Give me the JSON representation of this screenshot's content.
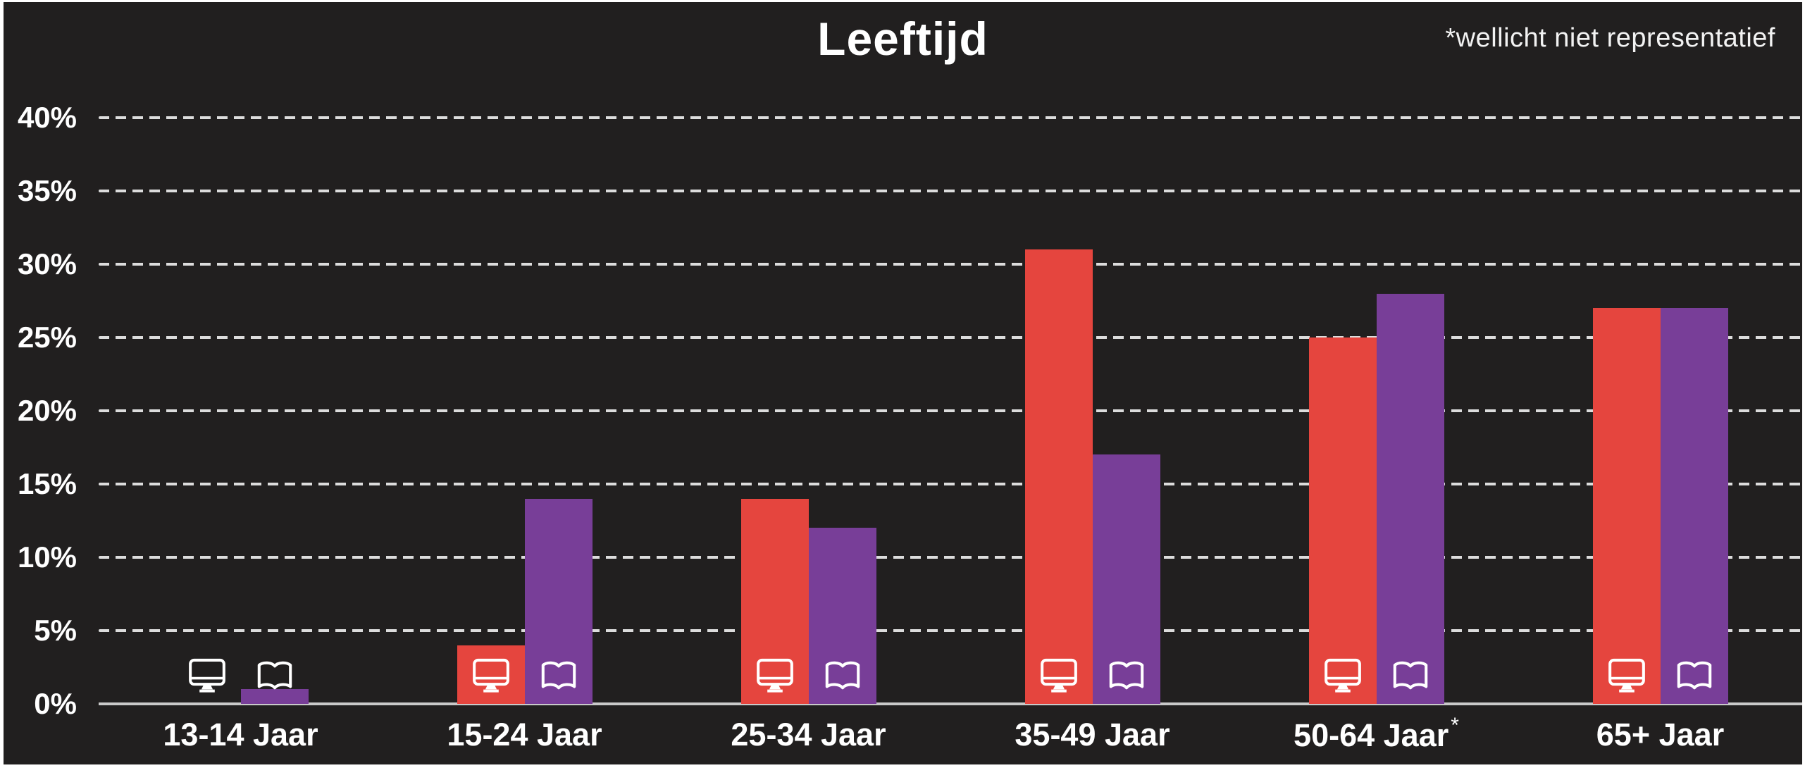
{
  "title": "Leeftijd",
  "annotation": "*wellicht niet representatief",
  "colors": {
    "background": "#211f1f",
    "page_edge": "#ffffff",
    "series_tv": "#e5453e",
    "series_book": "#783e98",
    "gridline": "#dcdcdc",
    "axis_line": "#c9c9c9",
    "text": "#ffffff"
  },
  "chart_data": {
    "type": "bar",
    "title": "Leeftijd",
    "annotation": "*wellicht niet representatief",
    "annotation_position": "top-right",
    "categories": [
      "13-14 Jaar",
      "15-24 Jaar",
      "25-34 Jaar",
      "35-49 Jaar",
      "50-64 Jaar",
      "65+ Jaar"
    ],
    "category_footnote_marks": [
      "",
      "",
      "",
      "",
      "*",
      ""
    ],
    "series": [
      {
        "name": "tv",
        "icon": "monitor-icon",
        "color": "#e5453e",
        "values": [
          0,
          4,
          14,
          31,
          25,
          27
        ]
      },
      {
        "name": "boek",
        "icon": "book-icon",
        "color": "#783e98",
        "values": [
          1,
          14,
          12,
          17,
          28,
          27
        ]
      }
    ],
    "xlabel": "",
    "ylabel": "",
    "ylim": [
      0,
      40
    ],
    "yticks": [
      0,
      5,
      10,
      15,
      20,
      25,
      30,
      35,
      40
    ],
    "ytick_suffix": "%",
    "grid": "horizontal-dashed",
    "legend": "icons-inside-bars"
  }
}
